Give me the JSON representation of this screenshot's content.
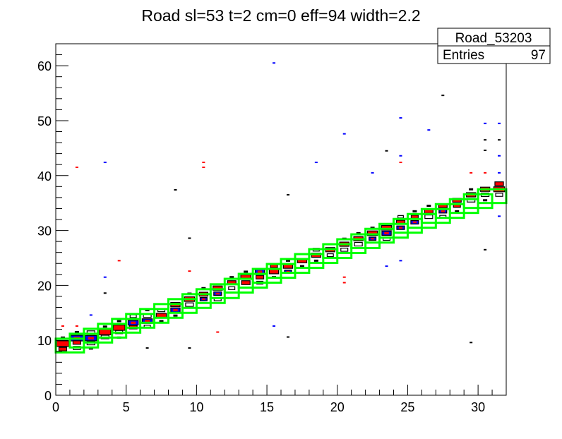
{
  "chart_data": {
    "type": "heatmap",
    "title": "Road sl=53 t=2 cm=0 eff=94 width=2.2",
    "xlabel": "",
    "ylabel": "",
    "xlim": [
      0,
      32
    ],
    "ylim": [
      0,
      64
    ],
    "xticks": [
      0,
      5,
      10,
      15,
      20,
      25,
      30
    ],
    "yticks": [
      0,
      10,
      20,
      30,
      40,
      50,
      60
    ],
    "grid": false,
    "legend": {
      "placement": "top-right",
      "name": "Road_53203",
      "entries_label": "Entries",
      "entries_value": "97"
    },
    "road": {
      "color": "#00ff00",
      "box_width_bins": 2,
      "centers": [
        9.0,
        9.9,
        10.8,
        11.7,
        12.6,
        13.5,
        14.4,
        15.3,
        16.2,
        17.1,
        18.0,
        18.9,
        19.9,
        20.8,
        21.7,
        22.6,
        23.5,
        24.4,
        25.3,
        26.2,
        27.1,
        28.0,
        29.0,
        29.9,
        30.8,
        31.7,
        32.6,
        33.5,
        34.4,
        35.3,
        36.2
      ]
    },
    "series_colors": {
      "red": "#ff0000",
      "blue": "#0000ff",
      "black": "#000000"
    },
    "diagonal_cells": [
      [
        0,
        9.4,
        "red",
        1.6
      ],
      [
        0,
        8.4,
        "red",
        1.0
      ],
      [
        0,
        10.5,
        "dot",
        0.3
      ],
      [
        1,
        10.4,
        "blue",
        1.6
      ],
      [
        1,
        9.6,
        "red",
        1.0
      ],
      [
        1,
        8.6,
        "open",
        0.9
      ],
      [
        1,
        11.5,
        "dot",
        0.3
      ],
      [
        2,
        10.4,
        "blue",
        1.5
      ],
      [
        2,
        9.5,
        "open",
        1.0
      ],
      [
        2,
        11.4,
        "open",
        1.0
      ],
      [
        2,
        8.5,
        "dot",
        0.4
      ],
      [
        3,
        11.5,
        "red",
        1.5
      ],
      [
        3,
        10.6,
        "open",
        1.0
      ],
      [
        3,
        12.5,
        "dot",
        0.4
      ],
      [
        4,
        12.3,
        "red",
        1.5
      ],
      [
        4,
        11.5,
        "open",
        0.9
      ],
      [
        4,
        13.5,
        "dot",
        0.4
      ],
      [
        4,
        10.5,
        "dot",
        0.3
      ],
      [
        5,
        13.2,
        "blue",
        1.3
      ],
      [
        5,
        12.4,
        "red",
        1.0
      ],
      [
        5,
        14.4,
        "open",
        0.8
      ],
      [
        6,
        13.5,
        "blue",
        1.3
      ],
      [
        6,
        14.5,
        "open",
        1.0
      ],
      [
        6,
        12.5,
        "open",
        0.8
      ],
      [
        6,
        15.5,
        "dot",
        0.3
      ],
      [
        7,
        14.5,
        "red",
        1.3
      ],
      [
        7,
        15.5,
        "open",
        0.9
      ],
      [
        7,
        13.5,
        "dot",
        0.3
      ],
      [
        8,
        16.5,
        "red",
        1.2
      ],
      [
        8,
        15.5,
        "blue",
        1.2
      ],
      [
        8,
        14.5,
        "dot",
        0.3
      ],
      [
        9,
        17.5,
        "red",
        1.3
      ],
      [
        9,
        16.5,
        "open",
        1.0
      ],
      [
        9,
        18.5,
        "dot",
        0.3
      ],
      [
        10,
        18.4,
        "red",
        1.1
      ],
      [
        10,
        17.5,
        "blue",
        0.9
      ],
      [
        10,
        19.5,
        "dot",
        0.3
      ],
      [
        11,
        19.5,
        "red",
        1.2
      ],
      [
        11,
        18.5,
        "blue",
        1.0
      ],
      [
        11,
        17.5,
        "open",
        0.9
      ],
      [
        12,
        20.5,
        "red",
        1.1
      ],
      [
        12,
        19.5,
        "open",
        0.8
      ],
      [
        12,
        21.5,
        "dot",
        0.3
      ],
      [
        13,
        21.5,
        "red",
        1.3
      ],
      [
        13,
        20.5,
        "red",
        1.1
      ],
      [
        13,
        22.5,
        "dot",
        0.3
      ],
      [
        14,
        22.5,
        "blue",
        1.2
      ],
      [
        14,
        21.5,
        "red",
        1.0
      ],
      [
        14,
        20.5,
        "open",
        0.8
      ],
      [
        15,
        22.5,
        "red",
        1.2
      ],
      [
        15,
        23.5,
        "red",
        0.9
      ],
      [
        15,
        21.5,
        "dot",
        0.3
      ],
      [
        16,
        23.5,
        "red",
        1.2
      ],
      [
        16,
        22.5,
        "blue",
        0.9
      ],
      [
        16,
        24.5,
        "dot",
        0.3
      ],
      [
        17,
        24.5,
        "red",
        1.2
      ],
      [
        17,
        23.5,
        "dot",
        0.3
      ],
      [
        18,
        25.5,
        "red",
        1.2
      ],
      [
        18,
        26.5,
        "open",
        0.8
      ],
      [
        18,
        24.5,
        "dot",
        0.3
      ],
      [
        19,
        26.5,
        "red",
        1.2
      ],
      [
        19,
        25.5,
        "open",
        0.8
      ],
      [
        19,
        27.5,
        "dot",
        0.3
      ],
      [
        20,
        27.5,
        "red",
        1.2
      ],
      [
        20,
        26.5,
        "open",
        0.9
      ],
      [
        20,
        28.5,
        "dot",
        0.3
      ],
      [
        21,
        28.5,
        "red",
        1.2
      ],
      [
        21,
        27.5,
        "open",
        1.0
      ],
      [
        21,
        29.5,
        "dot",
        0.3
      ],
      [
        22,
        29.5,
        "red",
        1.3
      ],
      [
        22,
        28.5,
        "blue",
        0.9
      ],
      [
        22,
        30.5,
        "dot",
        0.3
      ],
      [
        23,
        30.5,
        "red",
        1.3
      ],
      [
        23,
        29.5,
        "blue",
        1.2
      ],
      [
        23,
        28.5,
        "open",
        0.9
      ],
      [
        24,
        31.5,
        "red",
        1.1
      ],
      [
        24,
        30.5,
        "blue",
        1.0
      ],
      [
        24,
        32.5,
        "open",
        0.7
      ],
      [
        25,
        31.5,
        "blue",
        1.0
      ],
      [
        25,
        32.5,
        "red",
        0.9
      ],
      [
        25,
        33.5,
        "dot",
        0.3
      ],
      [
        26,
        33.5,
        "red",
        1.1
      ],
      [
        26,
        32.5,
        "open",
        1.0
      ],
      [
        26,
        34.5,
        "dot",
        0.3
      ],
      [
        27,
        34.5,
        "red",
        1.1
      ],
      [
        27,
        33.5,
        "blue",
        1.0
      ],
      [
        27,
        32.5,
        "open",
        0.8
      ],
      [
        28,
        35.5,
        "red",
        1.1
      ],
      [
        28,
        34.5,
        "red",
        0.9
      ],
      [
        28,
        33.5,
        "dot",
        0.3
      ],
      [
        29,
        36.5,
        "red",
        1.2
      ],
      [
        29,
        35.5,
        "open",
        1.0
      ],
      [
        29,
        37.5,
        "dot",
        0.3
      ],
      [
        30,
        37.5,
        "red",
        1.2
      ],
      [
        30,
        36.5,
        "open",
        1.0
      ],
      [
        30,
        35.5,
        "dot",
        0.3
      ],
      [
        31,
        38.5,
        "red",
        1.1
      ],
      [
        31,
        37.5,
        "red",
        1.4
      ],
      [
        31,
        36.5,
        "open",
        0.9
      ]
    ],
    "outliers": [
      [
        15,
        60.5,
        "blue"
      ],
      [
        24,
        50.5,
        "blue"
      ],
      [
        26,
        48.3,
        "blue"
      ],
      [
        27,
        54.6,
        "black"
      ],
      [
        30,
        49.5,
        "blue"
      ],
      [
        31,
        49.5,
        "blue"
      ],
      [
        30,
        46.5,
        "black"
      ],
      [
        31,
        46.5,
        "black"
      ],
      [
        30,
        44.6,
        "black"
      ],
      [
        31,
        43.6,
        "blue"
      ],
      [
        3,
        42.4,
        "blue"
      ],
      [
        1,
        41.5,
        "red"
      ],
      [
        18,
        42.4,
        "blue"
      ],
      [
        20,
        47.6,
        "blue"
      ],
      [
        10,
        42.4,
        "red"
      ],
      [
        10,
        41.5,
        "red"
      ],
      [
        23,
        44.5,
        "black"
      ],
      [
        24,
        43.6,
        "blue"
      ],
      [
        24,
        42.4,
        "red"
      ],
      [
        22,
        40.5,
        "blue"
      ],
      [
        29,
        40.5,
        "red"
      ],
      [
        30,
        40.5,
        "red"
      ],
      [
        31,
        40.5,
        "blue"
      ],
      [
        8,
        37.4,
        "black"
      ],
      [
        16,
        36.5,
        "black"
      ],
      [
        9,
        28.6,
        "black"
      ],
      [
        4,
        24.5,
        "red"
      ],
      [
        9,
        22.6,
        "red"
      ],
      [
        3,
        21.5,
        "blue"
      ],
      [
        3,
        18.6,
        "black"
      ],
      [
        11,
        11.5,
        "red"
      ],
      [
        15,
        12.6,
        "blue"
      ],
      [
        16,
        10.6,
        "black"
      ],
      [
        9,
        8.6,
        "black"
      ],
      [
        6,
        8.6,
        "black"
      ],
      [
        29,
        9.6,
        "black"
      ],
      [
        30,
        26.5,
        "black"
      ],
      [
        31,
        32.6,
        "blue"
      ],
      [
        20,
        21.5,
        "red"
      ],
      [
        20,
        20.5,
        "red"
      ],
      [
        23,
        23.5,
        "blue"
      ],
      [
        24,
        24.5,
        "blue"
      ],
      [
        2,
        14.6,
        "blue"
      ],
      [
        0,
        12.6,
        "red"
      ],
      [
        1,
        12.6,
        "red"
      ]
    ]
  }
}
